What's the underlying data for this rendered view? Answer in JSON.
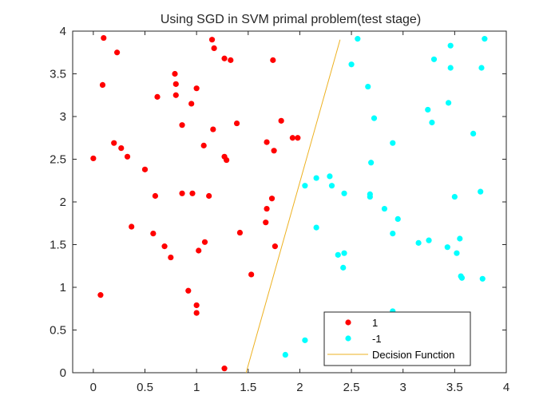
{
  "chart_data": {
    "type": "scatter",
    "title": "Using SGD in SVM primal problem(test stage)",
    "xlabel": "",
    "ylabel": "",
    "xlim": [
      -0.2,
      4
    ],
    "ylim": [
      0,
      4
    ],
    "xticks": [
      0,
      0.5,
      1,
      1.5,
      2,
      2.5,
      3,
      3.5,
      4
    ],
    "xtick_labels": [
      "0",
      "0.5",
      "1",
      "1.5",
      "2",
      "2.5",
      "3",
      "3.5",
      "4"
    ],
    "yticks": [
      0,
      0.5,
      1,
      1.5,
      2,
      2.5,
      3,
      3.5,
      4
    ],
    "ytick_labels": [
      "0",
      "0.5",
      "1",
      "1.5",
      "2",
      "2.5",
      "3",
      "3.5",
      "4"
    ],
    "grid": false,
    "legend_position": "bottom-right",
    "series": [
      {
        "name": "1",
        "color": "#ff0000",
        "marker": "dot",
        "points": [
          [
            0.1,
            3.92
          ],
          [
            0.23,
            3.75
          ],
          [
            0.09,
            3.37
          ],
          [
            0.0,
            2.51
          ],
          [
            0.2,
            2.69
          ],
          [
            0.27,
            2.63
          ],
          [
            0.33,
            2.53
          ],
          [
            0.5,
            2.38
          ],
          [
            0.37,
            1.71
          ],
          [
            0.6,
            2.07
          ],
          [
            0.58,
            1.63
          ],
          [
            0.69,
            1.48
          ],
          [
            0.75,
            1.35
          ],
          [
            0.62,
            3.23
          ],
          [
            0.79,
            3.5
          ],
          [
            0.8,
            3.38
          ],
          [
            0.8,
            3.25
          ],
          [
            0.86,
            2.9
          ],
          [
            0.95,
            3.15
          ],
          [
            1.0,
            3.33
          ],
          [
            0.86,
            2.1
          ],
          [
            0.96,
            2.1
          ],
          [
            1.02,
            1.43
          ],
          [
            1.08,
            1.53
          ],
          [
            1.07,
            2.66
          ],
          [
            1.12,
            2.07
          ],
          [
            0.92,
            0.96
          ],
          [
            1.0,
            0.79
          ],
          [
            1.0,
            0.7
          ],
          [
            0.07,
            0.91
          ],
          [
            1.15,
            3.9
          ],
          [
            1.17,
            3.8
          ],
          [
            1.27,
            3.68
          ],
          [
            1.33,
            3.66
          ],
          [
            1.16,
            2.85
          ],
          [
            1.27,
            2.53
          ],
          [
            1.29,
            2.49
          ],
          [
            1.39,
            2.92
          ],
          [
            1.42,
            1.64
          ],
          [
            1.53,
            1.15
          ],
          [
            1.27,
            0.05
          ],
          [
            1.74,
            3.66
          ],
          [
            1.82,
            2.95
          ],
          [
            1.68,
            2.7
          ],
          [
            1.75,
            2.6
          ],
          [
            1.93,
            2.75
          ],
          [
            1.98,
            2.75
          ],
          [
            1.73,
            2.04
          ],
          [
            1.68,
            1.92
          ],
          [
            1.67,
            1.76
          ],
          [
            1.76,
            1.48
          ]
        ]
      },
      {
        "name": "-1",
        "color": "#00ffff",
        "marker": "dot",
        "points": [
          [
            2.56,
            3.91
          ],
          [
            2.5,
            3.61
          ],
          [
            2.66,
            3.35
          ],
          [
            2.72,
            2.98
          ],
          [
            3.3,
            3.67
          ],
          [
            3.46,
            3.83
          ],
          [
            3.46,
            3.57
          ],
          [
            3.79,
            3.91
          ],
          [
            3.76,
            3.57
          ],
          [
            3.24,
            3.08
          ],
          [
            3.28,
            2.93
          ],
          [
            3.44,
            3.16
          ],
          [
            3.68,
            2.8
          ],
          [
            2.9,
            2.69
          ],
          [
            2.69,
            2.46
          ],
          [
            2.05,
            2.19
          ],
          [
            2.16,
            2.28
          ],
          [
            2.29,
            2.3
          ],
          [
            2.31,
            2.19
          ],
          [
            2.43,
            2.1
          ],
          [
            2.68,
            2.06
          ],
          [
            2.68,
            2.09
          ],
          [
            2.82,
            1.92
          ],
          [
            2.95,
            1.8
          ],
          [
            3.5,
            2.06
          ],
          [
            3.75,
            2.12
          ],
          [
            2.16,
            1.7
          ],
          [
            2.9,
            1.63
          ],
          [
            3.15,
            1.52
          ],
          [
            3.25,
            1.55
          ],
          [
            3.43,
            1.47
          ],
          [
            3.55,
            1.57
          ],
          [
            3.52,
            1.4
          ],
          [
            2.37,
            1.38
          ],
          [
            2.43,
            1.4
          ],
          [
            2.42,
            1.23
          ],
          [
            3.56,
            1.13
          ],
          [
            3.57,
            1.11
          ],
          [
            3.77,
            1.1
          ],
          [
            2.9,
            0.72
          ],
          [
            2.05,
            0.38
          ],
          [
            1.86,
            0.21
          ]
        ]
      }
    ],
    "lines": [
      {
        "name": "Decision Function",
        "color": "#edb120",
        "points": [
          [
            1.48,
            0.0
          ],
          [
            2.39,
            3.9
          ]
        ]
      }
    ]
  }
}
